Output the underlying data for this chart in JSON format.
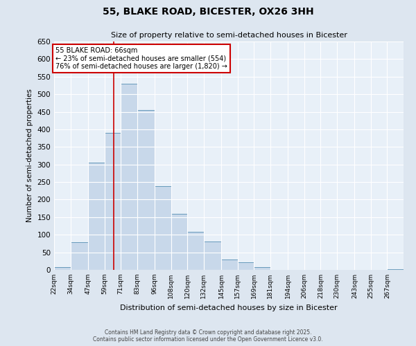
{
  "title": "55, BLAKE ROAD, BICESTER, OX26 3HH",
  "subtitle": "Size of property relative to semi-detached houses in Bicester",
  "xlabel": "Distribution of semi-detached houses by size in Bicester",
  "ylabel": "Number of semi-detached properties",
  "bin_labels": [
    "22sqm",
    "34sqm",
    "47sqm",
    "59sqm",
    "71sqm",
    "83sqm",
    "96sqm",
    "108sqm",
    "120sqm",
    "132sqm",
    "145sqm",
    "157sqm",
    "169sqm",
    "181sqm",
    "194sqm",
    "206sqm",
    "218sqm",
    "230sqm",
    "243sqm",
    "255sqm",
    "267sqm"
  ],
  "bin_edges": [
    22,
    34,
    47,
    59,
    71,
    83,
    96,
    108,
    120,
    132,
    145,
    157,
    169,
    181,
    194,
    206,
    218,
    230,
    243,
    255,
    267,
    279
  ],
  "bar_heights": [
    8,
    78,
    305,
    390,
    530,
    455,
    238,
    160,
    108,
    80,
    30,
    22,
    7,
    0,
    0,
    0,
    0,
    0,
    0,
    0,
    2
  ],
  "bar_color": "#c8d8ea",
  "bar_edge_color": "#6699bb",
  "ylim": [
    0,
    650
  ],
  "yticks": [
    0,
    50,
    100,
    150,
    200,
    250,
    300,
    350,
    400,
    450,
    500,
    550,
    600,
    650
  ],
  "property_line_x": 66,
  "property_label": "55 BLAKE ROAD: 66sqm",
  "pct_smaller": 23,
  "pct_larger": 76,
  "count_smaller": 554,
  "count_larger": 1820,
  "annotation_box_color": "#ffffff",
  "annotation_box_edge": "#cc0000",
  "vline_color": "#cc0000",
  "background_color": "#dde6f0",
  "plot_bg_color": "#e8f0f8",
  "grid_color": "#ffffff",
  "footer_line1": "Contains HM Land Registry data © Crown copyright and database right 2025.",
  "footer_line2": "Contains public sector information licensed under the Open Government Licence v3.0."
}
